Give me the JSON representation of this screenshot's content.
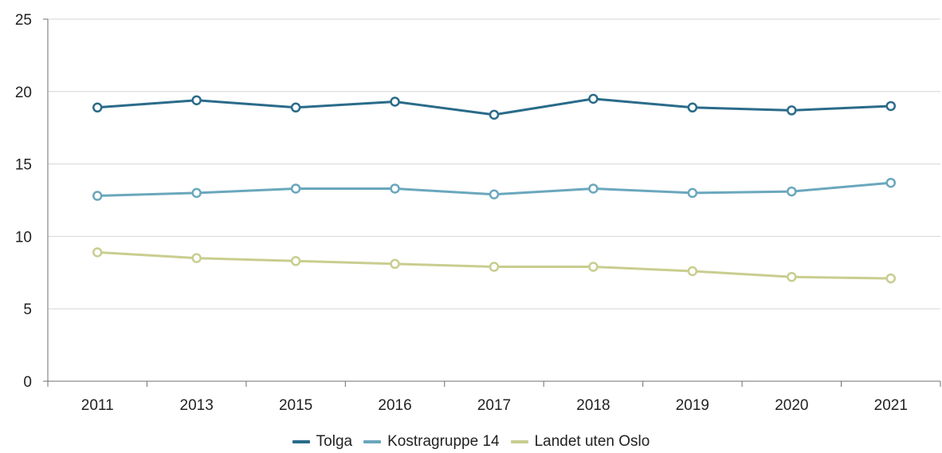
{
  "chart_data": {
    "type": "line",
    "categories": [
      "2011",
      "2013",
      "2015",
      "2016",
      "2017",
      "2018",
      "2019",
      "2020",
      "2021"
    ],
    "series": [
      {
        "name": "Tolga",
        "color": "#2a6b8a",
        "values": [
          18.9,
          19.4,
          18.9,
          19.3,
          18.4,
          19.5,
          18.9,
          18.7,
          19.0
        ]
      },
      {
        "name": "Kostragruppe 14",
        "color": "#6aa7bd",
        "values": [
          12.8,
          13.0,
          13.3,
          13.3,
          12.9,
          13.3,
          13.0,
          13.1,
          13.7
        ]
      },
      {
        "name": "Landet uten Oslo",
        "color": "#c9cd8f",
        "values": [
          8.9,
          8.5,
          8.3,
          8.1,
          7.9,
          7.9,
          7.6,
          7.2,
          7.1
        ]
      }
    ],
    "yticks": [
      "0",
      "5",
      "10",
      "15",
      "20",
      "25"
    ],
    "ylim": [
      0,
      25
    ],
    "grid": true,
    "legend": "bottom",
    "title": "",
    "xlabel": "",
    "ylabel": ""
  }
}
